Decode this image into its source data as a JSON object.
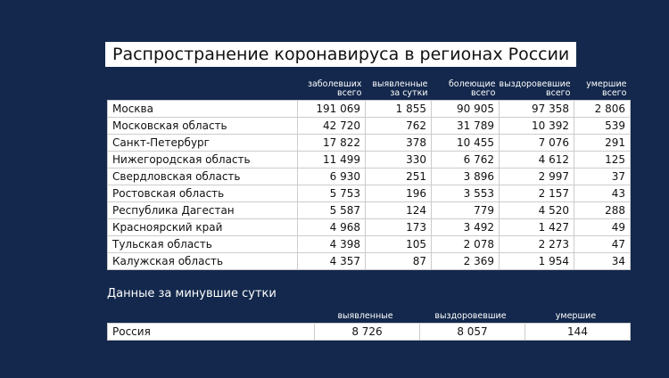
{
  "title": "Распространение коронавируса в регионах России",
  "table": {
    "header": [
      [
        "заболевших",
        "всего"
      ],
      [
        "выявленные",
        "за сутки"
      ],
      [
        "болеющие",
        "всего"
      ],
      [
        "выздоровевшие",
        "всего"
      ],
      [
        "умершие",
        "всего"
      ]
    ],
    "rows": [
      [
        "Москва",
        "191 069",
        "1 855",
        "90 905",
        "97 358",
        "2 806"
      ],
      [
        "Московская область",
        "42 720",
        "762",
        "31 789",
        "10 392",
        "539"
      ],
      [
        "Санкт-Петербург",
        "17 822",
        "378",
        "10 455",
        "7 076",
        "291"
      ],
      [
        "Нижегородская область",
        "11 499",
        "330",
        "6 762",
        "4 612",
        "125"
      ],
      [
        "Свердловская область",
        "6 930",
        "251",
        "3 896",
        "2 997",
        "37"
      ],
      [
        "Ростовская область",
        "5 753",
        "196",
        "3 553",
        "2 157",
        "43"
      ],
      [
        "Республика Дагестан",
        "5 587",
        "124",
        "779",
        "4 520",
        "288"
      ],
      [
        "Красноярский край",
        "4 968",
        "173",
        "3 492",
        "1 427",
        "49"
      ],
      [
        "Тульская область",
        "4 398",
        "105",
        "2 078",
        "2 273",
        "47"
      ],
      [
        "Калужская область",
        "4 357",
        "87",
        "2 369",
        "1 954",
        "34"
      ]
    ]
  },
  "summary": {
    "title": "Данные за минувшие сутки",
    "header": [
      "выявленные",
      "выздоровевшие",
      "умершие"
    ],
    "rows": [
      [
        "Россия",
        "8 726",
        "8 057",
        "144"
      ]
    ]
  }
}
